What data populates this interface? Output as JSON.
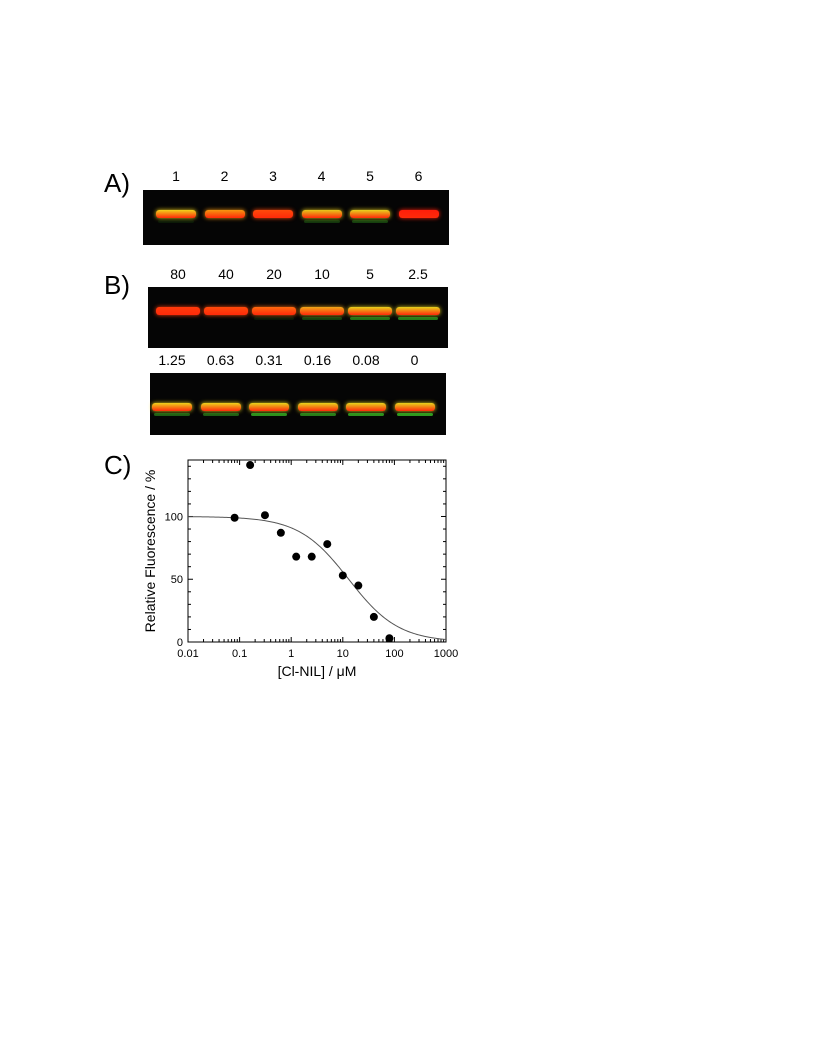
{
  "panels": {
    "a": {
      "label": "A)",
      "lanes": [
        {
          "label": "1",
          "hue": "#f2d21a",
          "lower": 0.1
        },
        {
          "label": "2",
          "hue": "#f5960f",
          "lower": 0.0
        },
        {
          "label": "3",
          "hue": "#ff4a0a",
          "lower": 0.0
        },
        {
          "label": "4",
          "hue": "#e6c81a",
          "lower": 0.25
        },
        {
          "label": "5",
          "hue": "#e9d21d",
          "lower": 0.3
        },
        {
          "label": "6",
          "hue": "#ff1e0a",
          "lower": 0.0
        }
      ]
    },
    "b": {
      "label": "B)",
      "row1": [
        {
          "label": "80",
          "hue": "#ff3a0a",
          "lower": 0.0
        },
        {
          "label": "40",
          "hue": "#ff4a0a",
          "lower": 0.0
        },
        {
          "label": "20",
          "hue": "#ff6a0e",
          "lower": 0.1
        },
        {
          "label": "10",
          "hue": "#f0a818",
          "lower": 0.3
        },
        {
          "label": "5",
          "hue": "#e8d21c",
          "lower": 0.55
        },
        {
          "label": "2.5",
          "hue": "#e5d21c",
          "lower": 0.6
        }
      ],
      "row2": [
        {
          "label": "1.25",
          "hue": "#ecd21c",
          "lower": 0.45
        },
        {
          "label": "0.63",
          "hue": "#ecd21c",
          "lower": 0.45
        },
        {
          "label": "0.31",
          "hue": "#e6d41c",
          "lower": 0.7
        },
        {
          "label": "0.16",
          "hue": "#e6d41c",
          "lower": 0.6
        },
        {
          "label": "0.08",
          "hue": "#e6d41c",
          "lower": 0.7
        },
        {
          "label": "0",
          "hue": "#e6d41c",
          "lower": 0.75
        }
      ]
    },
    "c": {
      "label": "C)"
    }
  },
  "chart_data": {
    "type": "scatter",
    "title": "",
    "xlabel": "[Cl-NIL]  /  μM",
    "ylabel": "Relative Fluorescence  /  %",
    "x_scale": "log",
    "xlim": [
      0.01,
      1000
    ],
    "ylim": [
      0,
      145
    ],
    "x_ticks": [
      {
        "value": 0.01,
        "label": "0.01"
      },
      {
        "value": 0.1,
        "label": "0.1"
      },
      {
        "value": 1,
        "label": "1"
      },
      {
        "value": 10,
        "label": "10"
      },
      {
        "value": 100,
        "label": "100"
      },
      {
        "value": 1000,
        "label": "1000"
      }
    ],
    "y_ticks": [
      {
        "value": 0,
        "label": "0"
      },
      {
        "value": 50,
        "label": "50"
      },
      {
        "value": 100,
        "label": "100"
      }
    ],
    "points": [
      {
        "x": 0.08,
        "y": 99
      },
      {
        "x": 0.16,
        "y": 141
      },
      {
        "x": 0.31,
        "y": 101
      },
      {
        "x": 0.63,
        "y": 87
      },
      {
        "x": 1.25,
        "y": 68
      },
      {
        "x": 2.5,
        "y": 68
      },
      {
        "x": 5,
        "y": 78
      },
      {
        "x": 10,
        "y": 53
      },
      {
        "x": 20,
        "y": 45
      },
      {
        "x": 40,
        "y": 20
      },
      {
        "x": 80,
        "y": 3
      }
    ],
    "fit": {
      "model": "dose-response",
      "top": 100,
      "bottom": 0,
      "ic50": 13,
      "hill": 0.9
    },
    "grid": false,
    "legend": "none",
    "colors": {
      "marker": "#000000",
      "fit": "#555555",
      "axis": "#000000"
    }
  }
}
